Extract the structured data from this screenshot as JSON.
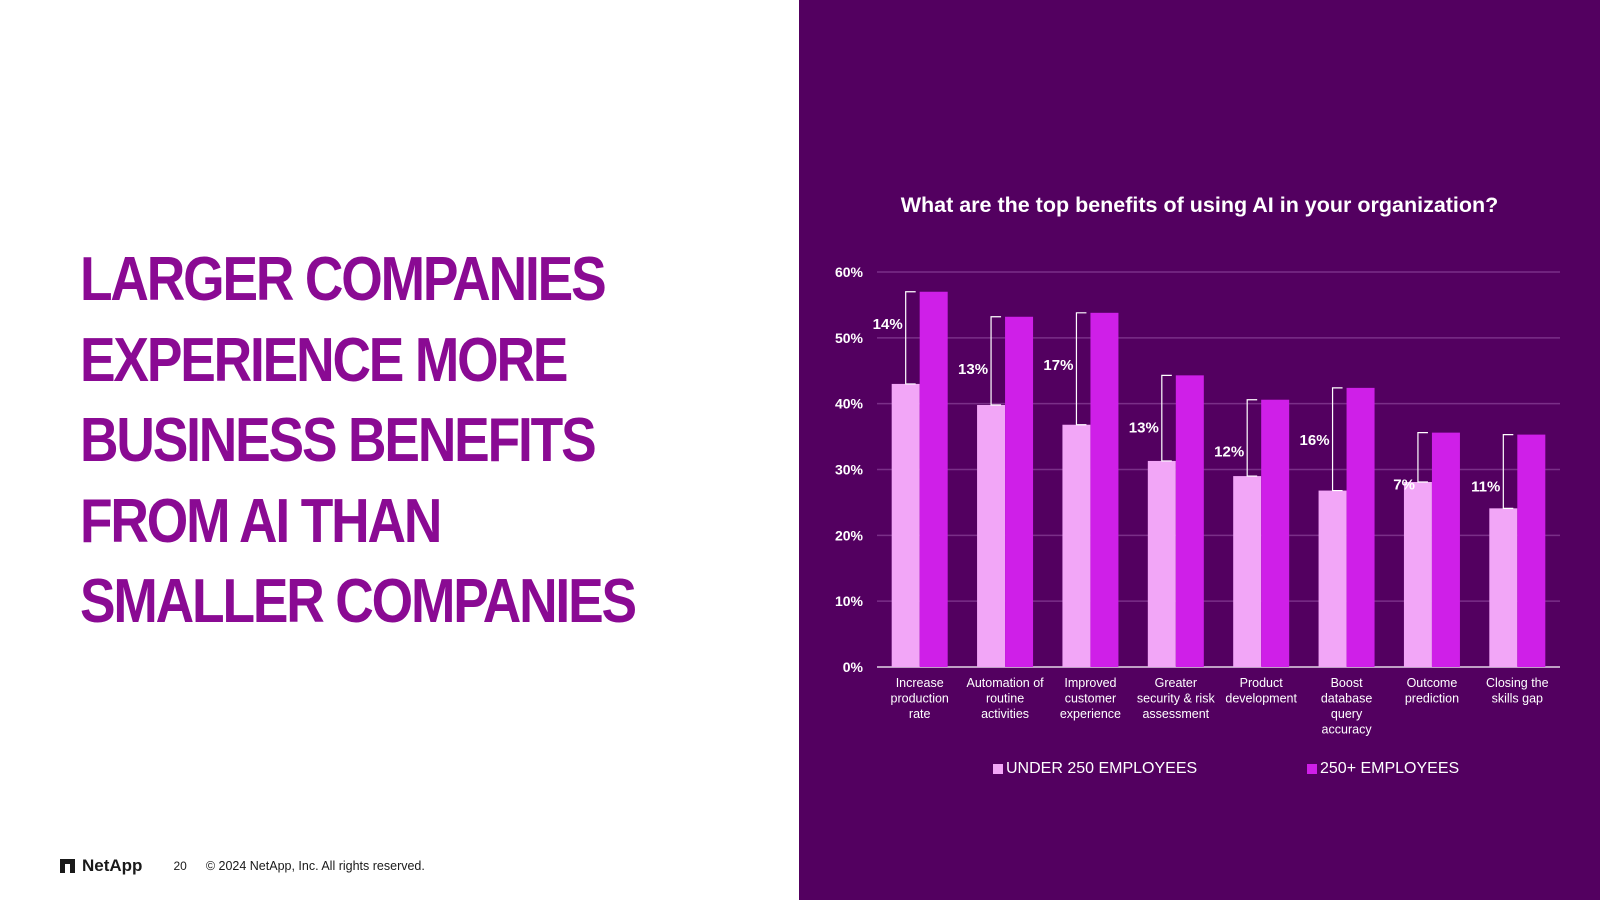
{
  "headline": {
    "lines": [
      "LARGER COMPANIES",
      "EXPERIENCE MORE",
      "BUSINESS BENEFITS",
      "FROM AI THAN",
      "SMALLER COMPANIES"
    ]
  },
  "footer": {
    "logo_text": "NetApp",
    "page_number": "20",
    "copyright": "© 2024 NetApp, Inc. All rights reserved."
  },
  "colors": {
    "accent_text": "#8a0a93",
    "panel_bg": "#530060",
    "series_small": "#f2a6f7",
    "series_large": "#cf1fe8",
    "gridline": "#7a2f88"
  },
  "chart_data": {
    "type": "bar",
    "title": "What are the top benefits of using AI in your organization?",
    "categories": [
      [
        "Increase",
        "production",
        "rate"
      ],
      [
        "Automation of",
        "routine",
        "activities"
      ],
      [
        "Improved",
        "customer",
        "experience"
      ],
      [
        "Greater",
        "security & risk",
        "assessment"
      ],
      [
        "Product",
        "development"
      ],
      [
        "Boost",
        "database",
        "query",
        "accuracy"
      ],
      [
        "Outcome",
        "prediction"
      ],
      [
        "Closing the",
        "skills gap"
      ]
    ],
    "series": [
      {
        "name": "UNDER 250 EMPLOYEES",
        "values": [
          43,
          39.8,
          36.8,
          31.3,
          29,
          26.8,
          28.1,
          24.1
        ]
      },
      {
        "name": "250+ EMPLOYEES",
        "values": [
          57,
          53.2,
          53.8,
          44.3,
          40.6,
          42.4,
          35.6,
          35.3
        ]
      }
    ],
    "gap_labels": [
      "14%",
      "13%",
      "17%",
      "13%",
      "12%",
      "16%",
      "7%",
      "11%"
    ],
    "y_ticks": [
      "0%",
      "10%",
      "20%",
      "30%",
      "40%",
      "50%",
      "60%"
    ],
    "ylim": [
      0,
      60
    ],
    "grid": true,
    "legend_position": "bottom"
  }
}
